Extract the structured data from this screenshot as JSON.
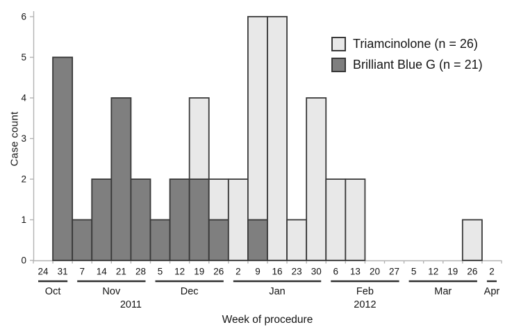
{
  "chart_data": {
    "type": "bar",
    "stacked": true,
    "title": "",
    "xlabel": "Week of procedure",
    "ylabel": "Case count",
    "ylim": [
      0,
      6
    ],
    "yticks": [
      "0",
      "1",
      "2",
      "3",
      "4",
      "5",
      "6"
    ],
    "grid": false,
    "categories": [
      "24",
      "31",
      "7",
      "14",
      "21",
      "28",
      "5",
      "12",
      "19",
      "26",
      "2",
      "9",
      "16",
      "23",
      "30",
      "6",
      "13",
      "20",
      "27",
      "5",
      "12",
      "19",
      "26",
      "2"
    ],
    "series": [
      {
        "name": "Brilliant Blue G (n = 21)",
        "stack": "bottom",
        "color": "#7f7f7f",
        "values": [
          0,
          5,
          1,
          2,
          4,
          2,
          1,
          2,
          2,
          1,
          0,
          1,
          0,
          0,
          0,
          0,
          0,
          0,
          0,
          0,
          0,
          0,
          0,
          0
        ]
      },
      {
        "name": "Triamcinolone (n = 26)",
        "stack": "top",
        "color": "#e8e8e8",
        "values": [
          0,
          0,
          0,
          0,
          0,
          0,
          0,
          0,
          2,
          1,
          2,
          5,
          6,
          1,
          4,
          2,
          2,
          0,
          0,
          0,
          0,
          0,
          1,
          0
        ]
      }
    ],
    "month_groups": [
      {
        "label": "Oct",
        "start": 0,
        "end": 1
      },
      {
        "label": "Nov",
        "start": 2,
        "end": 5
      },
      {
        "label": "Dec",
        "start": 6,
        "end": 9
      },
      {
        "label": "Jan",
        "start": 10,
        "end": 14
      },
      {
        "label": "Feb",
        "start": 15,
        "end": 18
      },
      {
        "label": "Mar",
        "start": 19,
        "end": 22
      },
      {
        "label": "Apr",
        "start": 23,
        "end": 23
      }
    ],
    "year_groups": [
      {
        "label": "2011",
        "start": 0,
        "end": 9
      },
      {
        "label": "2012",
        "start": 10,
        "end": 23
      }
    ],
    "legend": {
      "position": "upper right",
      "entries": [
        {
          "label": "Triamcinolone (n = 26)",
          "color": "#e8e8e8"
        },
        {
          "label": "Brilliant Blue G (n = 21)",
          "color": "#7f7f7f"
        }
      ]
    },
    "colors": {
      "axis": "#b3b3b3",
      "bar_border": "#383838",
      "month_line": "#2e2e2e",
      "text": "#141414"
    }
  }
}
